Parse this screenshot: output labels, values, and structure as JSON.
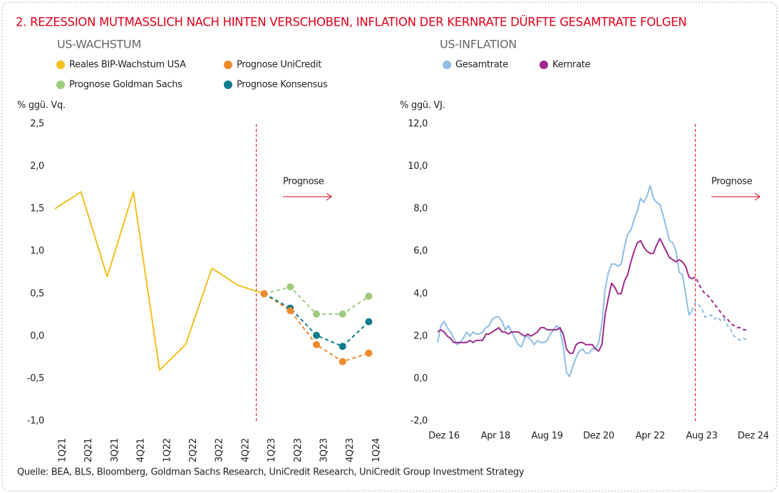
{
  "title": "2.   REZESSION MUTMASSLICH NACH HINTEN VERSCHOBEN, INFLATION DER KERNRATE DÜRFTE GESAMTRATE FOLGEN",
  "source": "Quelle: BEA, BLS, Bloomberg, Goldman Sachs Research, UniCredit Research, UniCredit Group Investment Strategy",
  "chart_data": [
    {
      "type": "line",
      "title": "US-WACHSTUM",
      "y_label": "% ggü. Vq.",
      "annotation": "Prognose",
      "forecast_start": "1Q23",
      "categories": [
        "1Q21",
        "2Q21",
        "3Q21",
        "4Q21",
        "1Q22",
        "2Q22",
        "3Q22",
        "4Q22",
        "1Q23",
        "2Q23",
        "3Q23",
        "4Q23",
        "1Q24"
      ],
      "series": [
        {
          "name": "Reales BIP-Wachstum USA",
          "color": "#f2c01e",
          "dashed": false,
          "markers": false,
          "values": [
            1.5,
            1.7,
            0.7,
            1.7,
            -0.4,
            -0.1,
            0.8,
            0.6,
            0.5,
            null,
            null,
            null,
            null
          ]
        },
        {
          "name": "Prognose UniCredit",
          "color": "#ef8a2c",
          "dashed": true,
          "markers": true,
          "values": [
            null,
            null,
            null,
            null,
            null,
            null,
            null,
            null,
            0.5,
            0.3,
            -0.1,
            -0.3,
            -0.2
          ]
        },
        {
          "name": "Prognose Goldman Sachs",
          "color": "#9dcb7b",
          "dashed": true,
          "markers": true,
          "values": [
            null,
            null,
            null,
            null,
            null,
            null,
            null,
            null,
            0.5,
            0.58,
            0.26,
            0.26,
            0.47
          ]
        },
        {
          "name": "Prognose Konsensus",
          "color": "#0f7b8a",
          "dashed": true,
          "markers": true,
          "values": [
            null,
            null,
            null,
            null,
            null,
            null,
            null,
            null,
            0.5,
            0.33,
            0.01,
            -0.12,
            0.17
          ]
        }
      ],
      "ylim": [
        -1,
        2.5
      ],
      "yticks": [
        {
          "value": -1,
          "label": "-1,0"
        },
        {
          "value": -0.5,
          "label": "-0,5"
        },
        {
          "value": 0,
          "label": "0,0"
        },
        {
          "value": 0.5,
          "label": "0,5"
        },
        {
          "value": 1,
          "label": "1,0"
        },
        {
          "value": 1.5,
          "label": "1,5"
        },
        {
          "value": 2,
          "label": "2,0"
        },
        {
          "value": 2.5,
          "label": "2,5"
        }
      ]
    },
    {
      "type": "line",
      "title": "US-INFLATION",
      "y_label": "% ggü. VJ.",
      "annotation": "Prognose",
      "forecast_start": "2023-08",
      "x": [
        "2016-12",
        "2017-01",
        "2017-02",
        "2017-03",
        "2017-04",
        "2017-05",
        "2017-06",
        "2017-07",
        "2017-08",
        "2017-09",
        "2017-10",
        "2017-11",
        "2017-12",
        "2018-01",
        "2018-02",
        "2018-03",
        "2018-04",
        "2018-05",
        "2018-06",
        "2018-07",
        "2018-08",
        "2018-09",
        "2018-10",
        "2018-11",
        "2018-12",
        "2019-01",
        "2019-02",
        "2019-03",
        "2019-04",
        "2019-05",
        "2019-06",
        "2019-07",
        "2019-08",
        "2019-09",
        "2019-10",
        "2019-11",
        "2019-12",
        "2020-01",
        "2020-02",
        "2020-03",
        "2020-04",
        "2020-05",
        "2020-06",
        "2020-07",
        "2020-08",
        "2020-09",
        "2020-10",
        "2020-11",
        "2020-12",
        "2021-01",
        "2021-02",
        "2021-03",
        "2021-04",
        "2021-05",
        "2021-06",
        "2021-07",
        "2021-08",
        "2021-09",
        "2021-10",
        "2021-11",
        "2021-12",
        "2022-01",
        "2022-02",
        "2022-03",
        "2022-04",
        "2022-05",
        "2022-06",
        "2022-07",
        "2022-08",
        "2022-09",
        "2022-10",
        "2022-11",
        "2022-12",
        "2023-01",
        "2023-02",
        "2023-03",
        "2023-04",
        "2023-05",
        "2023-06",
        "2023-07",
        "2023-08",
        "2023-09",
        "2023-10",
        "2023-11",
        "2023-12",
        "2024-01",
        "2024-02",
        "2024-03",
        "2024-04",
        "2024-05",
        "2024-06",
        "2024-07",
        "2024-08",
        "2024-09",
        "2024-10",
        "2024-11",
        "2024-12"
      ],
      "series": [
        {
          "name": "Gesamtrate",
          "color": "#8fbce3",
          "values": [
            1.7,
            2.5,
            2.7,
            2.4,
            2.2,
            1.9,
            1.6,
            1.7,
            1.9,
            2.2,
            2.0,
            2.2,
            2.1,
            2.1,
            2.2,
            2.4,
            2.5,
            2.8,
            2.9,
            2.9,
            2.7,
            2.3,
            2.5,
            2.2,
            1.9,
            1.6,
            1.5,
            1.9,
            2.0,
            1.8,
            1.6,
            1.8,
            1.7,
            1.7,
            1.8,
            2.1,
            2.3,
            2.5,
            2.3,
            1.5,
            0.3,
            0.1,
            0.6,
            1.0,
            1.3,
            1.4,
            1.2,
            1.2,
            1.4,
            1.4,
            1.7,
            2.6,
            4.2,
            5.0,
            5.4,
            5.4,
            5.3,
            5.4,
            6.2,
            6.8,
            7.0,
            7.5,
            7.9,
            8.5,
            8.3,
            8.6,
            9.1,
            8.5,
            8.3,
            8.2,
            7.7,
            7.1,
            6.5,
            6.4,
            6.0,
            5.0,
            4.9,
            4.0,
            3.0,
            3.2,
            3.6,
            3.5,
            3.3,
            2.9,
            2.9,
            3.0,
            2.8,
            2.9,
            2.7,
            2.8,
            2.5,
            2.3,
            2.0,
            1.9,
            1.8,
            1.9,
            1.8
          ]
        },
        {
          "name": "Kernrate",
          "color": "#9c2a8c",
          "values": [
            2.2,
            2.3,
            2.2,
            2.0,
            1.9,
            1.7,
            1.7,
            1.7,
            1.7,
            1.7,
            1.8,
            1.7,
            1.8,
            1.8,
            1.8,
            2.1,
            2.1,
            2.2,
            2.3,
            2.4,
            2.2,
            2.2,
            2.1,
            2.2,
            2.2,
            2.2,
            2.1,
            2.0,
            2.1,
            2.0,
            2.1,
            2.2,
            2.4,
            2.4,
            2.3,
            2.3,
            2.3,
            2.3,
            2.4,
            2.1,
            1.4,
            1.2,
            1.2,
            1.6,
            1.7,
            1.7,
            1.6,
            1.6,
            1.6,
            1.4,
            1.3,
            1.6,
            3.0,
            3.8,
            4.5,
            4.3,
            4.0,
            4.0,
            4.6,
            4.9,
            5.5,
            6.0,
            6.4,
            6.5,
            6.2,
            6.0,
            5.9,
            5.9,
            6.3,
            6.6,
            6.3,
            6.0,
            5.7,
            5.6,
            5.5,
            5.6,
            5.5,
            5.3,
            4.8,
            4.7,
            4.8,
            4.5,
            4.2,
            4.0,
            3.9,
            3.7,
            3.5,
            3.3,
            3.1,
            2.9,
            2.8,
            2.6,
            2.5,
            2.4,
            2.4,
            2.3,
            2.3
          ]
        }
      ],
      "ylim": [
        -2,
        12
      ],
      "yticks": [
        {
          "value": -2,
          "label": "-2,0"
        },
        {
          "value": 0,
          "label": "0,0"
        },
        {
          "value": 2,
          "label": "2,0"
        },
        {
          "value": 4,
          "label": "4,0"
        },
        {
          "value": 6,
          "label": "6,0"
        },
        {
          "value": 8,
          "label": "8,0"
        },
        {
          "value": 10,
          "label": "10,0"
        },
        {
          "value": 12,
          "label": "12,0"
        }
      ],
      "xticks": [
        {
          "value": "2016-12",
          "label": "Dez 16"
        },
        {
          "value": "2018-04",
          "label": "Apr 18"
        },
        {
          "value": "2019-08",
          "label": "Aug 19"
        },
        {
          "value": "2020-12",
          "label": "Dez 20"
        },
        {
          "value": "2022-04",
          "label": "Apr 22"
        },
        {
          "value": "2023-08",
          "label": "Aug 23"
        },
        {
          "value": "2024-12",
          "label": "Dez 24"
        }
      ]
    }
  ]
}
